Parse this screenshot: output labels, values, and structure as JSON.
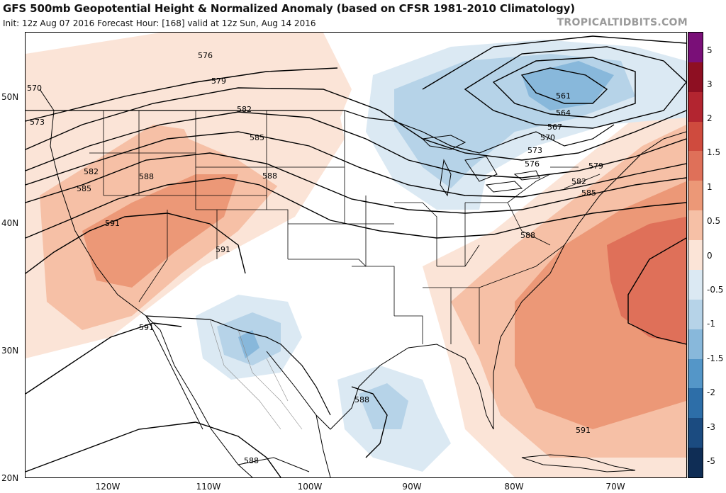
{
  "header": {
    "title": "GFS 500mb Geopotential Height & Normalized Anomaly (based on CFSR 1981-2010 Climatology)",
    "init_line": "Init: 12z Aug 07 2016   Forecast Hour: [168]   valid at 12z Sun, Aug 14 2016",
    "brand": "TROPICALTIDBITS.COM"
  },
  "axes": {
    "latitudes": [
      "50N",
      "40N",
      "30N",
      "20N"
    ],
    "longitudes": [
      "120W",
      "110W",
      "100W",
      "90W",
      "80W",
      "70W"
    ]
  },
  "colorbar": {
    "labels": [
      "5",
      "3",
      "2",
      "1.5",
      "1",
      "0.5",
      "0",
      "-0.5",
      "-1",
      "-1.5",
      "-2",
      "-3",
      "-5"
    ],
    "colors": [
      "#7a0f78",
      "#8e0f22",
      "#b32530",
      "#cf4b3e",
      "#df7059",
      "#ec9877",
      "#f6c0a6",
      "#fbe4d7",
      "#dbe9f3",
      "#b6d3e8",
      "#88b8db",
      "#5496c8",
      "#2d6ea8",
      "#1b4b80",
      "#0f2d55"
    ]
  },
  "contours": {
    "labels": [
      "576",
      "579",
      "582",
      "585",
      "588",
      "591",
      "570",
      "573",
      "561",
      "564",
      "567"
    ]
  },
  "anomaly_colors": {
    "positive_light": "#fbe4d7",
    "positive_mid": "#f6c0a6",
    "positive_strong": "#ec9877",
    "positive_max": "#df7059",
    "negative_light": "#dbe9f3",
    "negative_mid": "#b6d3e8",
    "negative_strong": "#88b8db"
  }
}
